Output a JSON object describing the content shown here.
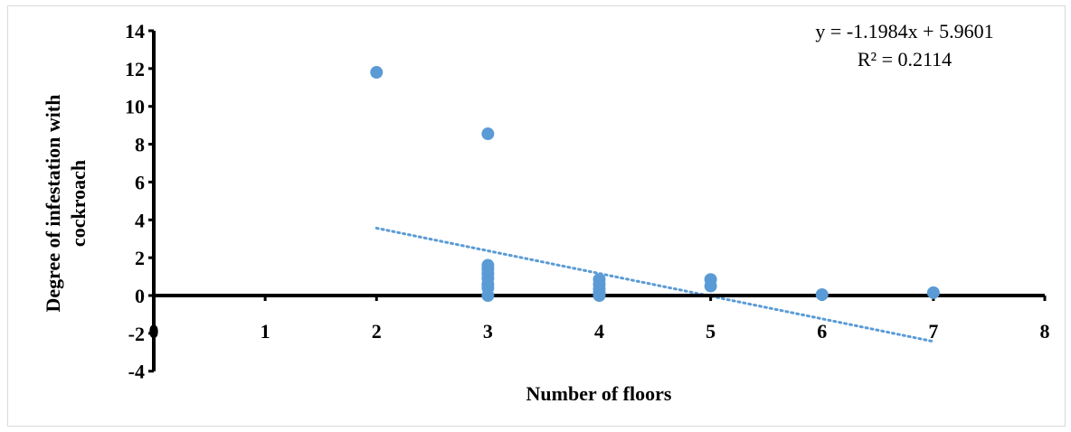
{
  "chart_data": {
    "type": "scatter",
    "xlabel": "Number of floors",
    "ylabel": "Degree of infestation with cockroach",
    "xlim": [
      0,
      8
    ],
    "ylim": [
      -4,
      14
    ],
    "x_ticks": [
      "0",
      "1",
      "2",
      "3",
      "4",
      "5",
      "6",
      "7",
      "8"
    ],
    "y_ticks": [
      "-4",
      "-2",
      "0",
      "2",
      "4",
      "6",
      "8",
      "10",
      "12",
      "14"
    ],
    "grid": false,
    "legend": "none",
    "series": [
      {
        "points": [
          {
            "x": 2,
            "y": 11.8
          },
          {
            "x": 3,
            "y": 8.55
          },
          {
            "x": 3,
            "y": 1.6
          },
          {
            "x": 3,
            "y": 1.4
          },
          {
            "x": 3,
            "y": 1.15
          },
          {
            "x": 3,
            "y": 0.9
          },
          {
            "x": 3,
            "y": 0.6
          },
          {
            "x": 3,
            "y": 0.4
          },
          {
            "x": 3,
            "y": 0.0
          },
          {
            "x": 4,
            "y": 0.85
          },
          {
            "x": 4,
            "y": 0.6
          },
          {
            "x": 4,
            "y": 0.35
          },
          {
            "x": 4,
            "y": 0.15
          },
          {
            "x": 4,
            "y": 0.0
          },
          {
            "x": 5,
            "y": 0.85
          },
          {
            "x": 5,
            "y": 0.5
          },
          {
            "x": 6,
            "y": 0.05
          },
          {
            "x": 7,
            "y": 0.15
          }
        ],
        "color": "#5b9bd5"
      }
    ],
    "trendline": {
      "type": "linear",
      "slope": -1.1984,
      "intercept": 5.9601,
      "x_range": [
        2,
        7
      ],
      "style": "dotted",
      "color": "#5b9bd5",
      "equation_text": "y = -1.1984x + 5.9601",
      "r2_text": "R² = 0.2114"
    }
  }
}
